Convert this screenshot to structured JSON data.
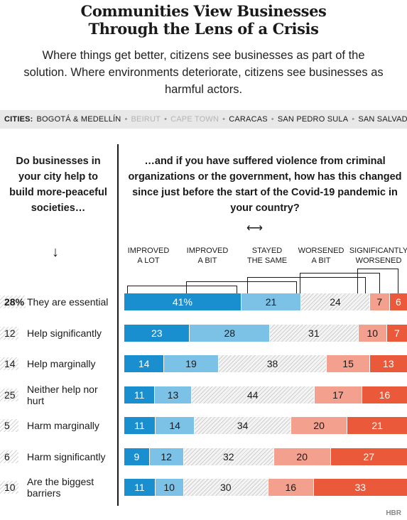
{
  "title_line1": "Communities View Businesses",
  "title_line2": "Through the Lens of a Crisis",
  "subtitle": "Where things get better, citizens see businesses as part of the solution. Where environments deteriorate, citizens see businesses as harmful actors.",
  "cities": {
    "label": "CITIES:",
    "items": [
      {
        "name": "BOGOTÁ & MEDELLÍN",
        "highlight": true
      },
      {
        "name": "BEIRUT",
        "highlight": false
      },
      {
        "name": "CAPE TOWN",
        "highlight": false
      },
      {
        "name": "CARACAS",
        "highlight": true
      },
      {
        "name": "SAN PEDRO SULA",
        "highlight": true
      },
      {
        "name": "SAN SALVADOR",
        "highlight": true
      }
    ]
  },
  "left_question": "Do businesses in your city help to build more-peaceful societies…",
  "right_question": "…and if you have suffered violence from criminal organizations or the government, how has this changed since just before the start of the Covid-19 pandemic in your country?",
  "arrow_down": "↓",
  "arrow_both": "⟷",
  "brand": "HBR",
  "colors": {
    "improved_a_lot": "#1a8fcf",
    "improved_a_bit": "#7cc1e6",
    "stayed_the_same": "#e6e6e6",
    "worsened_a_bit": "#f3a08e",
    "significantly_worsened": "#ea5a3a"
  },
  "chart_data": {
    "type": "bar",
    "stacked": true,
    "orientation": "horizontal",
    "categories": [
      "They are essential",
      "Help significantly",
      "Help marginally",
      "Neither help nor hurt",
      "Harm marginally",
      "Harm significantly",
      "Are the biggest barriers"
    ],
    "category_shares": [
      "28%",
      "12",
      "14",
      "25",
      "5",
      "6",
      "10"
    ],
    "series_labels": [
      "IMPROVED A LOT",
      "IMPROVED A BIT",
      "STAYED THE SAME",
      "WORSENED A BIT",
      "SIGNIFICANTLY WORSENED"
    ],
    "series": [
      {
        "name": "IMPROVED A LOT",
        "values": [
          41,
          23,
          14,
          11,
          11,
          9,
          11
        ]
      },
      {
        "name": "IMPROVED A BIT",
        "values": [
          21,
          28,
          19,
          13,
          14,
          12,
          10
        ]
      },
      {
        "name": "STAYED THE SAME",
        "values": [
          24,
          31,
          38,
          44,
          34,
          32,
          30
        ]
      },
      {
        "name": "WORSENED A BIT",
        "values": [
          7,
          10,
          15,
          17,
          20,
          20,
          16
        ]
      },
      {
        "name": "SIGNIFICANTLY WORSENED",
        "values": [
          6,
          7,
          13,
          16,
          21,
          27,
          33
        ]
      }
    ],
    "value_labels": [
      [
        "41%",
        "21",
        "24",
        "7",
        "6"
      ],
      [
        "23",
        "28",
        "31",
        "10",
        "7"
      ],
      [
        "14",
        "19",
        "38",
        "15",
        "13"
      ],
      [
        "11",
        "13",
        "44",
        "17",
        "16"
      ],
      [
        "11",
        "14",
        "34",
        "20",
        "21"
      ],
      [
        "9",
        "12",
        "32",
        "20",
        "27"
      ],
      [
        "11",
        "10",
        "30",
        "16",
        "33"
      ]
    ]
  }
}
